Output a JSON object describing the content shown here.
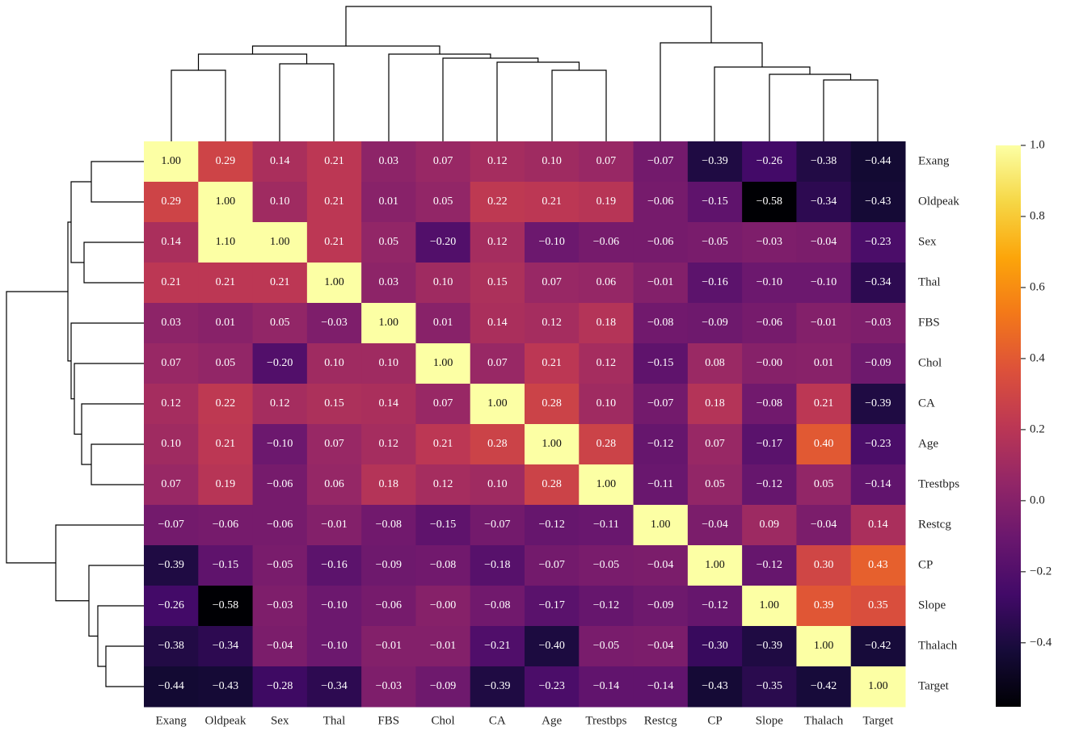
{
  "chart_data": {
    "type": "heatmap",
    "colormap": "inferno",
    "x_categories": [
      "Exang",
      "Oldpeak",
      "Sex",
      "Thal",
      "FBS",
      "Chol",
      "CA",
      "Age",
      "Trestbps",
      "Restcg",
      "CP",
      "Slope",
      "Thalach",
      "Target"
    ],
    "y_categories": [
      "Exang",
      "Oldpeak",
      "Sex",
      "Thal",
      "FBS",
      "Chol",
      "CA",
      "Age",
      "Trestbps",
      "Restcg",
      "CP",
      "Slope",
      "Thalach",
      "Target"
    ],
    "values": [
      [
        1.0,
        0.29,
        0.14,
        0.21,
        0.03,
        0.07,
        0.12,
        0.1,
        0.07,
        -0.07,
        -0.39,
        -0.26,
        -0.38,
        -0.44
      ],
      [
        0.29,
        1.0,
        0.1,
        0.21,
        0.01,
        0.05,
        0.22,
        0.21,
        0.19,
        -0.06,
        -0.15,
        -0.58,
        -0.34,
        -0.43
      ],
      [
        0.14,
        1.1,
        1.0,
        0.21,
        0.05,
        -0.2,
        0.12,
        -0.1,
        -0.06,
        -0.06,
        -0.05,
        -0.03,
        -0.04,
        -0.23
      ],
      [
        0.21,
        0.21,
        0.21,
        1.0,
        0.03,
        0.1,
        0.15,
        0.07,
        0.06,
        -0.01,
        -0.16,
        -0.1,
        -0.1,
        -0.34
      ],
      [
        0.03,
        0.01,
        0.05,
        -0.03,
        1.0,
        0.01,
        0.14,
        0.12,
        0.18,
        -0.08,
        -0.09,
        -0.06,
        -0.01,
        -0.03
      ],
      [
        0.07,
        0.05,
        -0.2,
        0.1,
        0.1,
        1.0,
        0.07,
        0.21,
        0.12,
        -0.15,
        0.08,
        0,
        0.01,
        -0.09
      ],
      [
        0.12,
        0.22,
        0.12,
        0.15,
        0.14,
        0.07,
        1.0,
        0.28,
        0.1,
        -0.07,
        0.18,
        -0.08,
        0.21,
        -0.39
      ],
      [
        0.1,
        0.21,
        -0.1,
        0.07,
        0.12,
        0.21,
        0.28,
        1.0,
        0.28,
        -0.12,
        0.07,
        -0.17,
        0.4,
        -0.23
      ],
      [
        0.07,
        0.19,
        -0.06,
        0.06,
        0.18,
        0.12,
        0.1,
        0.28,
        1.0,
        -0.11,
        0.05,
        -0.12,
        0.05,
        -0.14
      ],
      [
        -0.07,
        -0.06,
        -0.06,
        -0.01,
        -0.08,
        -0.15,
        -0.07,
        -0.12,
        -0.11,
        1.0,
        -0.04,
        0.09,
        -0.04,
        0.14
      ],
      [
        -0.39,
        -0.15,
        -0.05,
        -0.16,
        -0.09,
        -0.08,
        -0.18,
        -0.07,
        -0.05,
        -0.04,
        1.0,
        -0.12,
        0.3,
        0.43
      ],
      [
        -0.26,
        -0.58,
        -0.03,
        -0.1,
        -0.06,
        0,
        -0.08,
        -0.17,
        -0.12,
        -0.09,
        -0.12,
        1.0,
        0.39,
        0.35
      ],
      [
        -0.38,
        -0.34,
        -0.04,
        -0.1,
        -0.01,
        -0.01,
        -0.21,
        -0.4,
        -0.05,
        -0.04,
        -0.3,
        -0.39,
        1.0,
        -0.42
      ],
      [
        -0.44,
        -0.43,
        -0.28,
        -0.34,
        -0.03,
        -0.09,
        -0.39,
        -0.23,
        -0.14,
        -0.14,
        -0.43,
        -0.35,
        -0.42,
        1.0
      ]
    ],
    "value_labels": [
      [
        "1.00",
        "0.29",
        "0.14",
        "0.21",
        "0.03",
        "0.07",
        "0.12",
        "0.10",
        "0.07",
        "−0.07",
        "−0.39",
        "−0.26",
        "−0.38",
        "−0.44"
      ],
      [
        "0.29",
        "1.00",
        "0.10",
        "0.21",
        "0.01",
        "0.05",
        "0.22",
        "0.21",
        "0.19",
        "−0.06",
        "−0.15",
        "−0.58",
        "−0.34",
        "−0.43"
      ],
      [
        "0.14",
        "1.10",
        "1.00",
        "0.21",
        "0.05",
        "−0.20",
        "0.12",
        "−0.10",
        "−0.06",
        "−0.06",
        "−0.05",
        "−0.03",
        "−0.04",
        "−0.23"
      ],
      [
        "0.21",
        "0.21",
        "0.21",
        "1.00",
        "0.03",
        "0.10",
        "0.15",
        "0.07",
        "0.06",
        "−0.01",
        "−0.16",
        "−0.10",
        "−0.10",
        "−0.34"
      ],
      [
        "0.03",
        "0.01",
        "0.05",
        "−0.03",
        "1.00",
        "0.01",
        "0.14",
        "0.12",
        "0.18",
        "−0.08",
        "−0.09",
        "−0.06",
        "−0.01",
        "−0.03"
      ],
      [
        "0.07",
        "0.05",
        "−0.20",
        "0.10",
        "0.10",
        "1.00",
        "0.07",
        "0.21",
        "0.12",
        "−0.15",
        "0.08",
        "−0.00",
        "0.01",
        "−0.09"
      ],
      [
        "0.12",
        "0.22",
        "0.12",
        "0.15",
        "0.14",
        "0.07",
        "1.00",
        "0.28",
        "0.10",
        "−0.07",
        "0.18",
        "−0.08",
        "0.21",
        "−0.39"
      ],
      [
        "0.10",
        "0.21",
        "−0.10",
        "0.07",
        "0.12",
        "0.21",
        "0.28",
        "1.00",
        "0.28",
        "−0.12",
        "0.07",
        "−0.17",
        "0.40",
        "−0.23"
      ],
      [
        "0.07",
        "0.19",
        "−0.06",
        "0.06",
        "0.18",
        "0.12",
        "0.10",
        "0.28",
        "1.00",
        "−0.11",
        "0.05",
        "−0.12",
        "0.05",
        "−0.14"
      ],
      [
        "−0.07",
        "−0.06",
        "−0.06",
        "−0.01",
        "−0.08",
        "−0.15",
        "−0.07",
        "−0.12",
        "−0.11",
        "1.00",
        "−0.04",
        "0.09",
        "−0.04",
        "0.14"
      ],
      [
        "−0.39",
        "−0.15",
        "−0.05",
        "−0.16",
        "−0.09",
        "−0.08",
        "−0.18",
        "−0.07",
        "−0.05",
        "−0.04",
        "1.00",
        "−0.12",
        "0.30",
        "0.43"
      ],
      [
        "−0.26",
        "−0.58",
        "−0.03",
        "−0.10",
        "−0.06",
        "−0.00",
        "−0.08",
        "−0.17",
        "−0.12",
        "−0.09",
        "−0.12",
        "1.00",
        "0.39",
        "0.35"
      ],
      [
        "−0.38",
        "−0.34",
        "−0.04",
        "−0.10",
        "−0.01",
        "−0.01",
        "−0.21",
        "−0.40",
        "−0.05",
        "−0.04",
        "−0.30",
        "−0.39",
        "1.00",
        "−0.42"
      ],
      [
        "−0.44",
        "−0.43",
        "−0.28",
        "−0.34",
        "−0.03",
        "−0.09",
        "−0.39",
        "−0.23",
        "−0.14",
        "−0.14",
        "−0.43",
        "−0.35",
        "−0.42",
        "1.00"
      ]
    ],
    "clim": [
      -0.58,
      1.0
    ],
    "cticks": [
      {
        "value": -0.4,
        "label": "−0.4"
      },
      {
        "value": -0.2,
        "label": "−0.2"
      },
      {
        "value": 0,
        "label": "0.0"
      },
      {
        "value": 0.2,
        "label": "0.2"
      },
      {
        "value": 0.4,
        "label": "0.4"
      },
      {
        "value": 0.6,
        "label": "0.6"
      },
      {
        "value": 0.8,
        "label": "0.8"
      },
      {
        "value": 1.0,
        "label": "1.0"
      }
    ]
  }
}
